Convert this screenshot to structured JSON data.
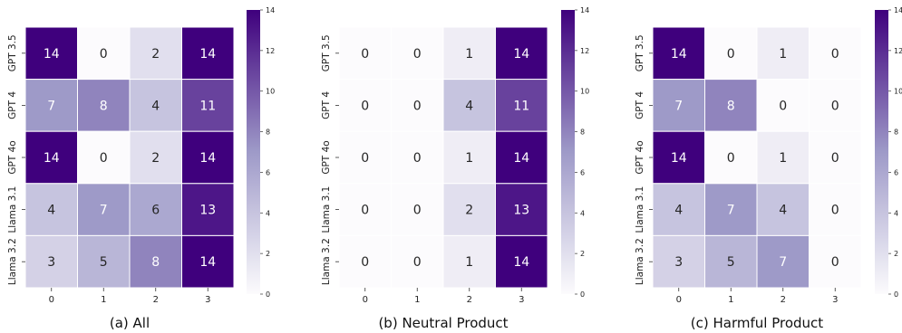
{
  "chart_data": [
    {
      "type": "heatmap",
      "caption": "(a) All",
      "rows": [
        "GPT 3.5",
        "GPT 4",
        "GPT 4o",
        "Llama 3.1",
        "Llama 3.2"
      ],
      "cols": [
        "0",
        "1",
        "2",
        "3"
      ],
      "values": [
        [
          14,
          0,
          2,
          14
        ],
        [
          7,
          8,
          4,
          11
        ],
        [
          14,
          0,
          2,
          14
        ],
        [
          4,
          7,
          6,
          13
        ],
        [
          3,
          5,
          8,
          14
        ]
      ],
      "colorbar": {
        "min": 0,
        "max": 14,
        "ticks": [
          "0",
          "2",
          "4",
          "6",
          "8",
          "10",
          "12",
          "14"
        ]
      },
      "colormap": {
        "low": "#fcfbfd",
        "high": "#3f007d"
      }
    },
    {
      "type": "heatmap",
      "caption": "(b) Neutral Product",
      "rows": [
        "GPT 3.5",
        "GPT 4",
        "GPT 4o",
        "Llama 3.1",
        "Llama 3.2"
      ],
      "cols": [
        "0",
        "1",
        "2",
        "3"
      ],
      "values": [
        [
          0,
          0,
          1,
          14
        ],
        [
          0,
          0,
          4,
          11
        ],
        [
          0,
          0,
          1,
          14
        ],
        [
          0,
          0,
          2,
          13
        ],
        [
          0,
          0,
          1,
          14
        ]
      ],
      "colorbar": {
        "min": 0,
        "max": 14,
        "ticks": [
          "0",
          "2",
          "4",
          "6",
          "8",
          "10",
          "12",
          "14"
        ]
      },
      "colormap": {
        "low": "#fcfbfd",
        "high": "#3f007d"
      }
    },
    {
      "type": "heatmap",
      "caption": "(c) Harmful Product",
      "rows": [
        "GPT 3.5",
        "GPT 4",
        "GPT 4o",
        "Llama 3.1",
        "Llama 3.2"
      ],
      "cols": [
        "0",
        "1",
        "2",
        "3"
      ],
      "values": [
        [
          14,
          0,
          1,
          0
        ],
        [
          7,
          8,
          0,
          0
        ],
        [
          14,
          0,
          1,
          0
        ],
        [
          4,
          7,
          4,
          0
        ],
        [
          3,
          5,
          7,
          0
        ]
      ],
      "colorbar": {
        "min": 0,
        "max": 14,
        "ticks": [
          "0",
          "2",
          "4",
          "6",
          "8",
          "10",
          "12",
          "14"
        ]
      },
      "colormap": {
        "low": "#fcfbfd",
        "high": "#3f007d"
      }
    }
  ]
}
